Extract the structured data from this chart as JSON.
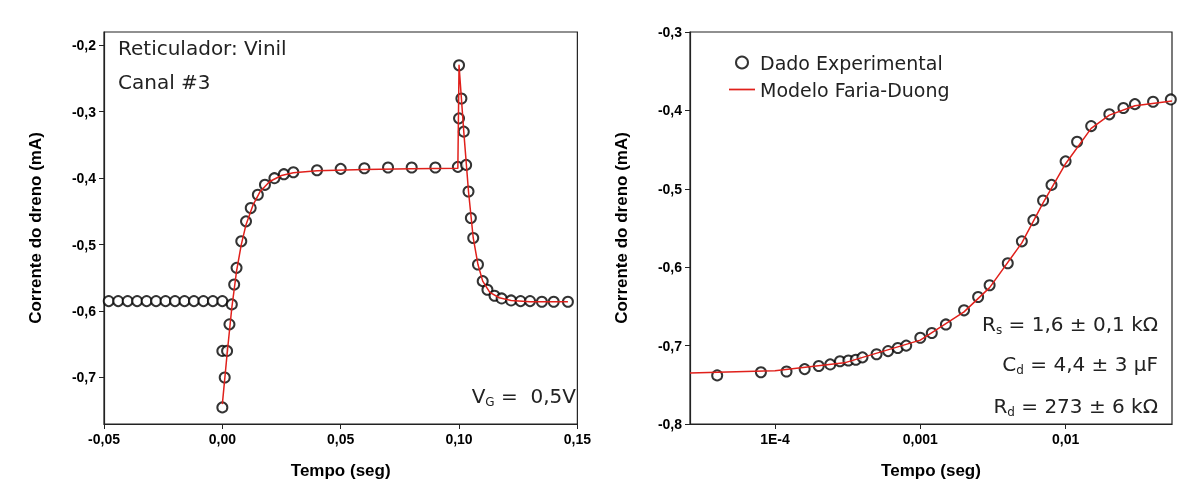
{
  "chart_data": [
    {
      "type": "scatter",
      "xlabel": "Tempo (seg)",
      "ylabel": "Corrente do dreno (mA)",
      "annotations": [
        "Reticulador: Vinil",
        "Canal #3",
        "V$_{G}$ =  0,5V"
      ],
      "xlim": [
        -0.05,
        0.15
      ],
      "ylim": [
        -0.77,
        -0.18
      ],
      "xticks": [
        {
          "value": -0.05,
          "label": "-0,05"
        },
        {
          "value": 0,
          "label": "0,00"
        },
        {
          "value": 0.05,
          "label": "0,05"
        },
        {
          "value": 0.1,
          "label": "0,10"
        },
        {
          "value": 0.15,
          "label": "0,15"
        }
      ],
      "yticks": [
        {
          "value": -0.7,
          "label": "-0,7"
        },
        {
          "value": -0.6,
          "label": "-0,6"
        },
        {
          "value": -0.5,
          "label": "-0,5"
        },
        {
          "value": -0.4,
          "label": "-0,4"
        },
        {
          "value": -0.3,
          "label": "-0,3"
        },
        {
          "value": -0.2,
          "label": "-0,2"
        }
      ],
      "grid": false,
      "legend": false,
      "series": [
        {
          "marker": "circle",
          "color": "#000000",
          "x": [
            -0.048,
            -0.044,
            -0.04,
            -0.036,
            -0.032,
            -0.028,
            -0.024,
            -0.02,
            -0.016,
            -0.012,
            -0.008,
            -0.004,
            0,
            0,
            0,
            0.001,
            0.002,
            0.003,
            0.004,
            0.005,
            0.006,
            0.008,
            0.01,
            0.012,
            0.015,
            0.018,
            0.022,
            0.026,
            0.03,
            0.04,
            0.05,
            0.06,
            0.07,
            0.08,
            0.09,
            0.0995,
            0.1,
            0.1,
            0.101,
            0.102,
            0.103,
            0.104,
            0.105,
            0.106,
            0.108,
            0.11,
            0.112,
            0.115,
            0.118,
            0.122,
            0.126,
            0.13,
            0.135,
            0.14,
            0.146
          ],
          "values": [
            -0.585,
            -0.585,
            -0.585,
            -0.585,
            -0.585,
            -0.585,
            -0.585,
            -0.585,
            -0.585,
            -0.585,
            -0.585,
            -0.585,
            -0.585,
            -0.66,
            -0.745,
            -0.7,
            -0.66,
            -0.62,
            -0.59,
            -0.56,
            -0.535,
            -0.495,
            -0.465,
            -0.445,
            -0.425,
            -0.41,
            -0.4,
            -0.394,
            -0.391,
            -0.388,
            -0.386,
            -0.385,
            -0.384,
            -0.384,
            -0.384,
            -0.383,
            -0.31,
            -0.23,
            -0.28,
            -0.33,
            -0.38,
            -0.42,
            -0.46,
            -0.49,
            -0.53,
            -0.555,
            -0.568,
            -0.577,
            -0.581,
            -0.584,
            -0.585,
            -0.585,
            -0.586,
            -0.586,
            -0.586
          ]
        },
        {
          "type": "line",
          "marker": "none",
          "color": "#e0201b",
          "x": [
            0,
            0.002,
            0.004,
            0.006,
            0.008,
            0.01,
            0.013,
            0.016,
            0.02,
            0.025,
            0.03,
            0.04,
            0.06,
            0.08,
            0.0995,
            0.1,
            0.102,
            0.104,
            0.106,
            0.108,
            0.11,
            0.113,
            0.117,
            0.122,
            0.13,
            0.146
          ],
          "values": [
            -0.74,
            -0.665,
            -0.595,
            -0.54,
            -0.5,
            -0.47,
            -0.44,
            -0.42,
            -0.405,
            -0.396,
            -0.392,
            -0.389,
            -0.387,
            -0.386,
            -0.385,
            -0.23,
            -0.33,
            -0.42,
            -0.49,
            -0.53,
            -0.555,
            -0.572,
            -0.58,
            -0.584,
            -0.586,
            -0.586
          ]
        }
      ]
    },
    {
      "type": "scatter",
      "xlabel": "Tempo (seg)",
      "ylabel": "Corrente do dreno (mA)",
      "annotations": [
        "R$_{s}$ = 1,6 ± 0,1 kΩ",
        "C$_{d}$ = 4,4 ± 3 μF",
        "R$_{d}$ = 273 ± 6 kΩ"
      ],
      "log": "x",
      "xlim": [
        2.6e-05,
        0.054
      ],
      "ylim": [
        -0.8,
        -0.3
      ],
      "xticks": [
        {
          "value": 0.0001,
          "label": "1E-4"
        },
        {
          "value": 0.001,
          "label": "0,001"
        },
        {
          "value": 0.01,
          "label": "0,01"
        }
      ],
      "yticks": [
        {
          "value": -0.8,
          "label": "-0,8"
        },
        {
          "value": -0.7,
          "label": "-0,7"
        },
        {
          "value": -0.6,
          "label": "-0,6"
        },
        {
          "value": -0.5,
          "label": "-0,5"
        },
        {
          "value": -0.4,
          "label": "-0,4"
        },
        {
          "value": -0.3,
          "label": "-0,3"
        }
      ],
      "grid": false,
      "legend": "top left",
      "series": [
        {
          "name": "Dado Experimental",
          "marker": "circle",
          "color": "#000000",
          "x": [
            4e-05,
            8e-05,
            0.00012,
            0.00016,
            0.0002,
            0.00024,
            0.00028,
            0.00032,
            0.00036,
            0.0004,
            0.0005,
            0.0006,
            0.0007,
            0.0008,
            0.001,
            0.0012,
            0.0015,
            0.002,
            0.0025,
            0.003,
            0.004,
            0.005,
            0.006,
            0.007,
            0.008,
            0.01,
            0.012,
            0.015,
            0.02,
            0.025,
            0.03,
            0.04,
            0.053
          ],
          "values": [
            -0.738,
            -0.734,
            -0.733,
            -0.73,
            -0.726,
            -0.724,
            -0.72,
            -0.719,
            -0.718,
            -0.715,
            -0.711,
            -0.707,
            -0.703,
            -0.7,
            -0.69,
            -0.684,
            -0.673,
            -0.655,
            -0.638,
            -0.623,
            -0.595,
            -0.567,
            -0.54,
            -0.515,
            -0.495,
            -0.465,
            -0.44,
            -0.42,
            -0.405,
            -0.397,
            -0.392,
            -0.389,
            -0.386
          ]
        },
        {
          "type": "line",
          "name": "Modelo Faria-Duong",
          "marker": "none",
          "color": "#e0201b",
          "x": [
            2.6e-05,
            0.0001,
            0.0003,
            0.001,
            0.002,
            0.003,
            0.005,
            0.007,
            0.01,
            0.015,
            0.02,
            0.03,
            0.054
          ],
          "values": [
            -0.735,
            -0.732,
            -0.722,
            -0.693,
            -0.657,
            -0.626,
            -0.569,
            -0.518,
            -0.468,
            -0.423,
            -0.406,
            -0.394,
            -0.388
          ]
        }
      ]
    }
  ]
}
